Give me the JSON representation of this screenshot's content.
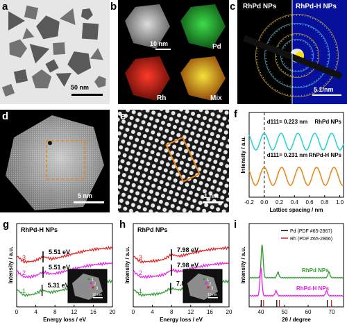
{
  "labels": {
    "a": "a",
    "b": "b",
    "c": "c",
    "d": "d",
    "e": "e",
    "f": "f",
    "g": "g",
    "h": "h",
    "i": "i"
  },
  "panel_a": {
    "scale_bar": "50 nm"
  },
  "panel_b": {
    "scale_bar": "10 nm",
    "pd": "Pd",
    "rh": "Rh",
    "mix": "Mix"
  },
  "panel_c": {
    "left": "RhPd NPs",
    "right": "RhPd-H NPs",
    "scale_bar": "5 1/nm"
  },
  "panel_d": {
    "scale_bar": "5 nm"
  },
  "panel_e": {
    "scale_bar": "1 nm"
  },
  "colors": {
    "cyan": "#2dd4d4",
    "orange": "#e8891e",
    "red": "#e31a1c",
    "magenta": "#e61ee6",
    "green": "#2e9b2e",
    "black": "#000000",
    "box": "#e8891e"
  },
  "chart_data": [
    {
      "id": "f",
      "type": "line",
      "xlabel": "Lattice spacing / nm",
      "ylabel": "Intensity / a.u.",
      "xlim": [
        -0.2,
        1.05
      ],
      "xticks": [
        "-0.2",
        "0.0",
        "0.2",
        "0.4",
        "0.6",
        "0.8",
        "1.0"
      ],
      "series": [
        {
          "name": "RhPd NPs",
          "annotation": "d111= 0.223 nm",
          "period": 0.223,
          "color": "cyan"
        },
        {
          "name": "RhPd-H NPs",
          "annotation": "d111= 0.231 nm",
          "period": 0.231,
          "color": "orange"
        }
      ]
    },
    {
      "id": "g",
      "type": "line",
      "title": "RhPd-H NPs",
      "xlabel": "Energy loss / eV",
      "ylabel": "Intensity / a.u.",
      "xlim": [
        0,
        20
      ],
      "xticks": [
        "0",
        "4",
        "8",
        "12",
        "16",
        "20"
      ],
      "series": [
        {
          "name": "3",
          "peak_label": "5.51 eV",
          "peak": 5.51,
          "color": "red"
        },
        {
          "name": "2",
          "peak_label": "5.51 eV",
          "peak": 5.51,
          "color": "magenta"
        },
        {
          "name": "1",
          "peak_label": "5.31 eV",
          "peak": 5.31,
          "color": "green"
        }
      ],
      "inset": {
        "scale_bar": "10 nm",
        "points": [
          "1",
          "2",
          "3"
        ]
      }
    },
    {
      "id": "h",
      "type": "line",
      "title": "RhPd NPs",
      "xlabel": "Energy loss / eV",
      "ylabel": "Intensity / a.u.",
      "xlim": [
        0,
        20
      ],
      "xticks": [
        "0",
        "4",
        "8",
        "12",
        "16",
        "20"
      ],
      "series": [
        {
          "name": "3",
          "peak_label": "7.98 eV",
          "peak": 7.98,
          "color": "red"
        },
        {
          "name": "2",
          "peak_label": "7.98 eV",
          "peak": 7.98,
          "color": "magenta"
        },
        {
          "name": "1",
          "peak_label": "7.81 eV",
          "peak": 7.81,
          "color": "green"
        }
      ],
      "inset": {
        "scale_bar": "10 nm",
        "points": [
          "1",
          "2",
          "3"
        ]
      }
    },
    {
      "id": "i",
      "type": "line",
      "xlabel": "2θ / degree",
      "ylabel": "Intensity / a.u.",
      "xlim": [
        35,
        75
      ],
      "xticks": [
        "40",
        "50",
        "60",
        "70"
      ],
      "legend": [
        "Pd (PDF #65-2867)",
        "Rh (PDF #65-2866)"
      ],
      "series": [
        {
          "name": "RhPd NPs",
          "color": "green",
          "peaks": [
            40.5,
            47.2,
            68.8
          ]
        },
        {
          "name": "RhPd-H NPs",
          "color": "magenta",
          "peaks": [
            40.0,
            46.4,
            67.8
          ]
        }
      ],
      "reference": {
        "Pd": [
          40.1,
          46.7,
          68.1
        ],
        "Rh": [
          41.1,
          47.8,
          69.9
        ]
      }
    }
  ]
}
